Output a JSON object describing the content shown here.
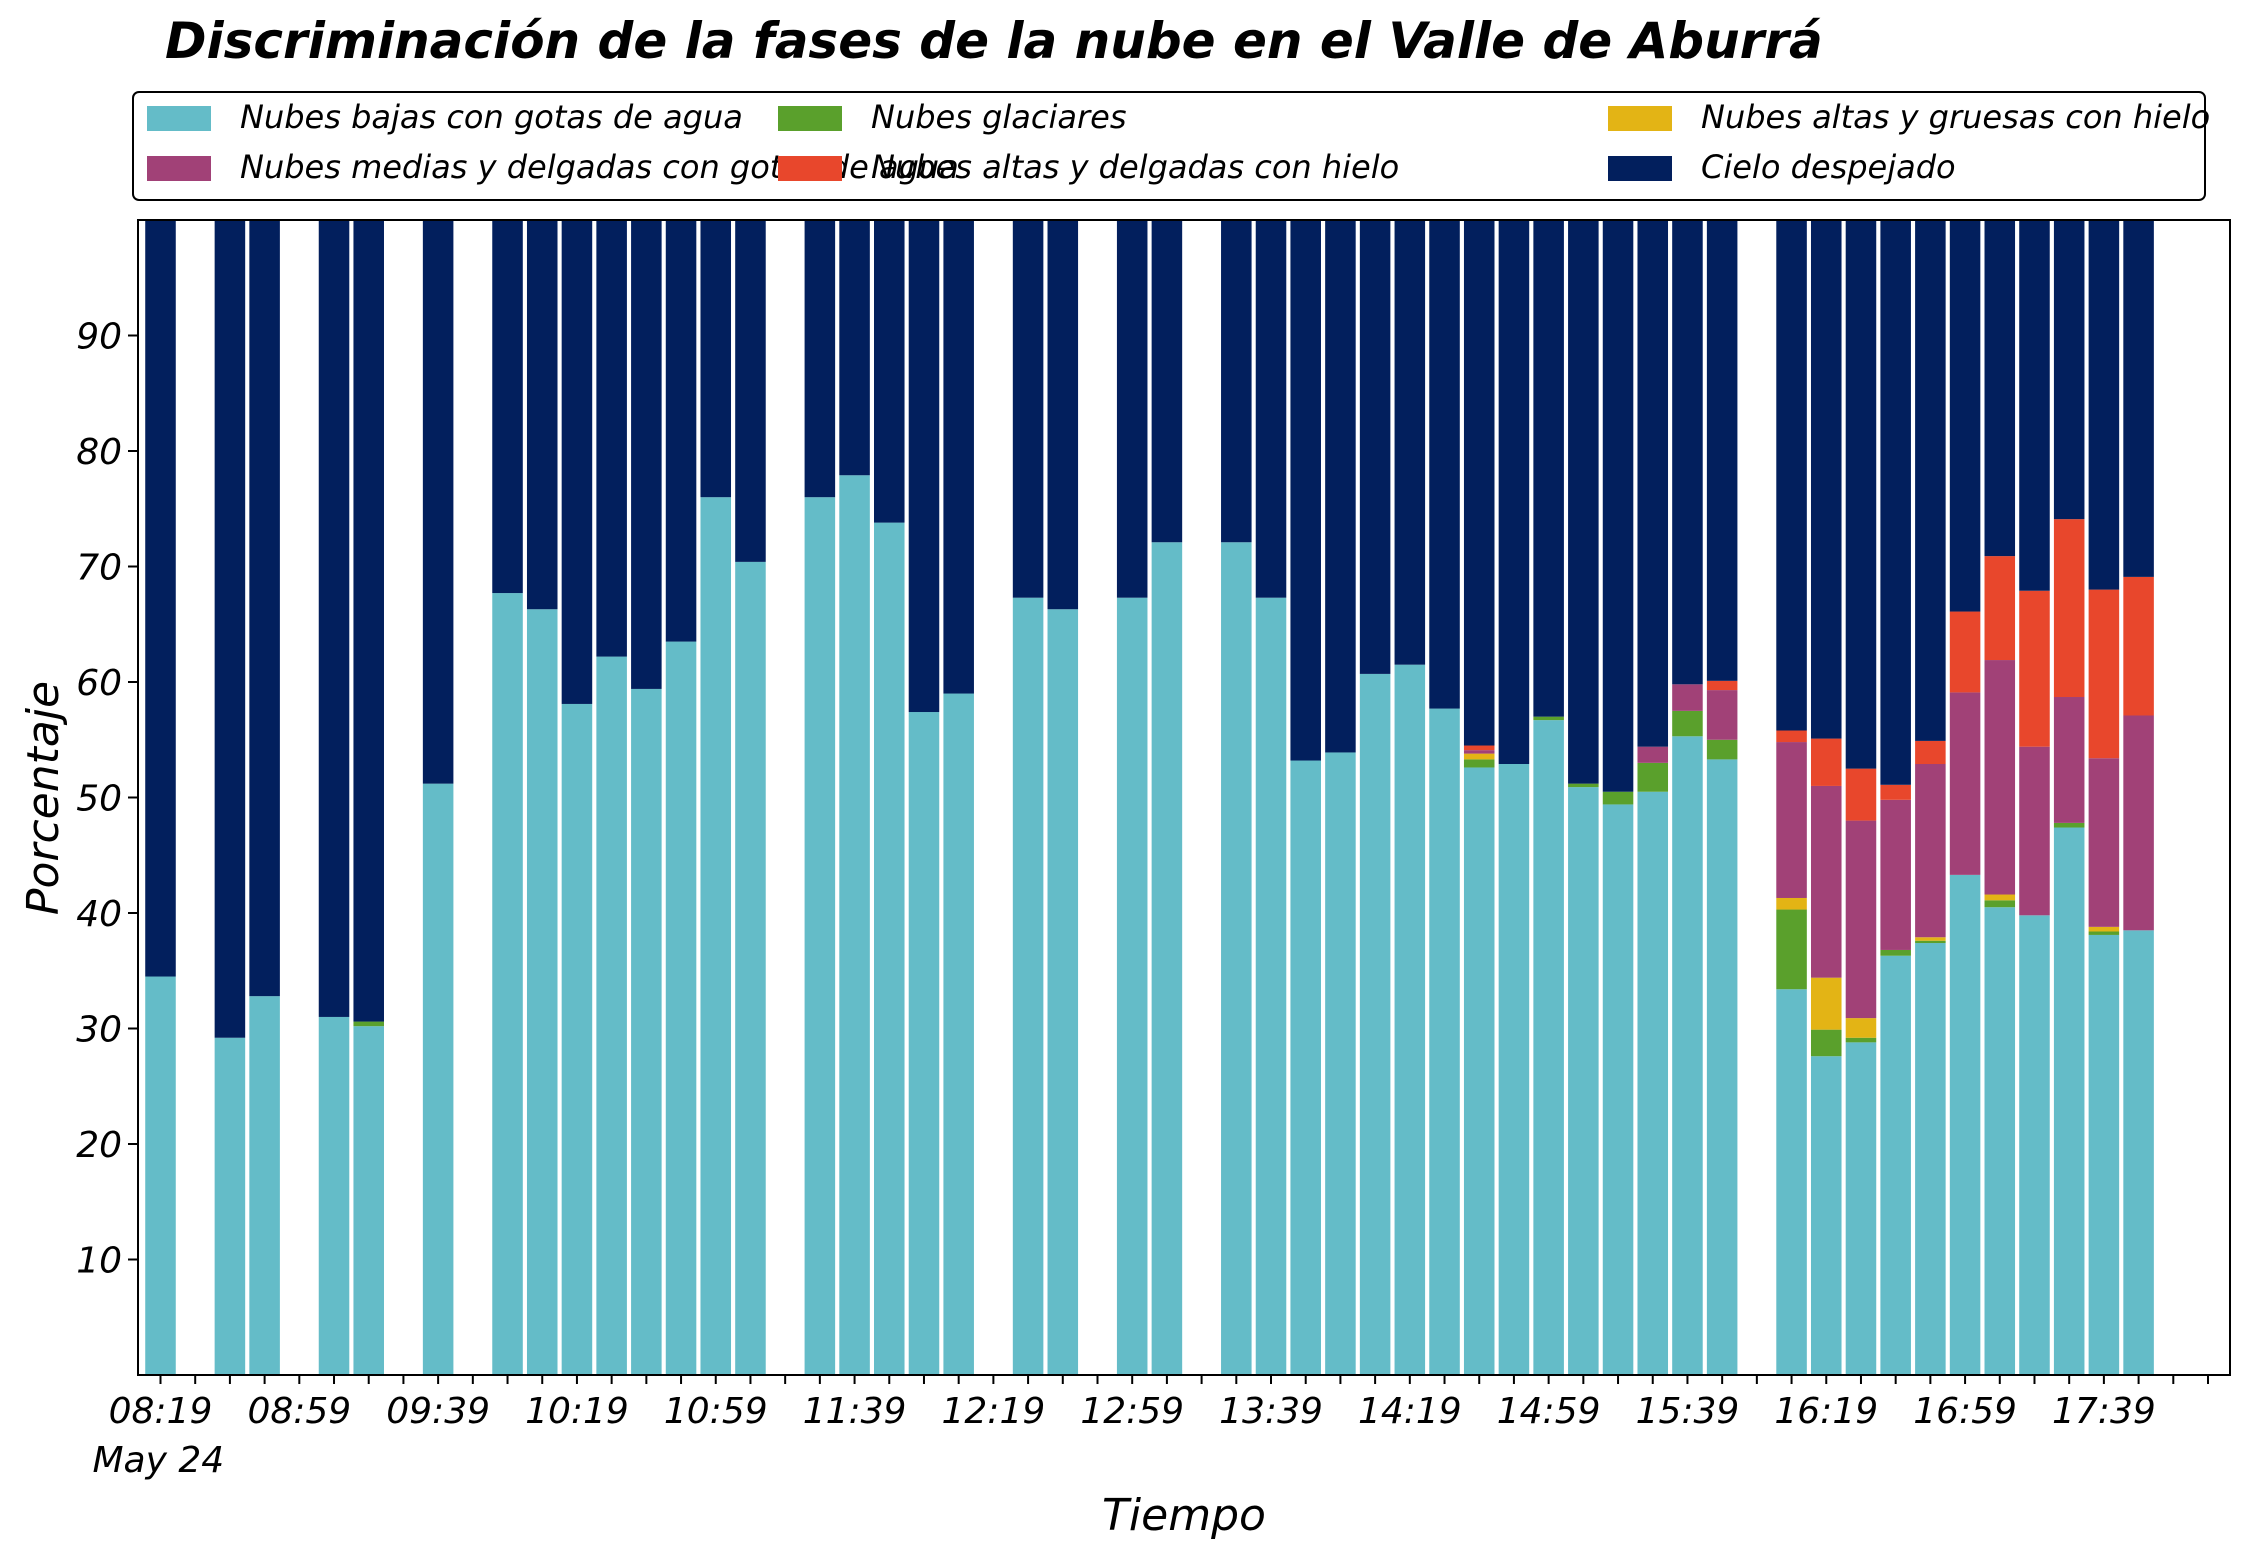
{
  "chart_data": {
    "type": "bar",
    "stacked": true,
    "title": "Discriminación de la fases de la nube en el Valle de Aburrá",
    "xlabel": "Tiempo",
    "ylabel": "Porcentaje",
    "ylim": [
      0,
      100
    ],
    "yticks": [
      10,
      20,
      30,
      40,
      50,
      60,
      70,
      80,
      90
    ],
    "x_start": "08:19",
    "x_end": "18:09",
    "x_step_minutes": 10,
    "x_date_label": "May 24",
    "xticks": [
      "08:19",
      "08:59",
      "09:39",
      "10:19",
      "10:59",
      "11:39",
      "12:19",
      "12:59",
      "13:39",
      "14:19",
      "14:59",
      "15:39",
      "16:19",
      "16:59",
      "17:39"
    ],
    "legend_position": "top",
    "legend_columns": 3,
    "grid": false,
    "x": [
      "08:19",
      "08:39",
      "08:49",
      "09:09",
      "09:19",
      "09:39",
      "09:59",
      "10:09",
      "10:19",
      "10:29",
      "10:39",
      "10:49",
      "10:59",
      "11:09",
      "11:29",
      "11:39",
      "11:49",
      "11:59",
      "12:09",
      "12:29",
      "12:39",
      "12:59",
      "13:09",
      "13:29",
      "13:39",
      "13:49",
      "13:59",
      "14:09",
      "14:19",
      "14:29",
      "14:39",
      "14:49",
      "14:59",
      "15:09",
      "15:19",
      "15:29",
      "15:39",
      "15:49",
      "16:09",
      "16:19",
      "16:29",
      "16:39",
      "16:49",
      "16:59",
      "17:09",
      "17:19",
      "17:29",
      "17:39",
      "17:49"
    ],
    "series": [
      {
        "name": "Nubes bajas con gotas de agua",
        "color": "#64bcc8",
        "values": [
          34.5,
          29.2,
          32.8,
          31.0,
          30.2,
          51.2,
          67.7,
          66.3,
          58.1,
          62.2,
          59.4,
          63.5,
          76.0,
          70.4,
          76.0,
          77.9,
          73.8,
          57.4,
          59.0,
          67.3,
          66.3,
          67.3,
          72.1,
          72.1,
          67.3,
          53.2,
          53.9,
          60.7,
          61.5,
          57.7,
          52.6,
          52.9,
          56.7,
          50.9,
          49.4,
          50.5,
          55.3,
          53.3,
          33.4,
          27.6,
          28.8,
          36.3,
          37.4,
          43.3,
          40.5,
          39.8,
          47.4,
          38.1,
          38.5
        ]
      },
      {
        "name": "Nubes glaciares",
        "color": "#5aa02c",
        "values": [
          0,
          0,
          0,
          0,
          0.4,
          0,
          0,
          0,
          0,
          0,
          0,
          0,
          0,
          0,
          0,
          0,
          0,
          0,
          0,
          0,
          0,
          0,
          0,
          0,
          0,
          0,
          0,
          0,
          0,
          0,
          0.7,
          0,
          0.3,
          0.3,
          1.1,
          2.5,
          2.2,
          1.7,
          6.9,
          2.3,
          0.4,
          0.5,
          0.2,
          0,
          0.6,
          0,
          0.4,
          0.3,
          0
        ]
      },
      {
        "name": "Nubes altas y gruesas con hielo",
        "color": "#e3b415",
        "values": [
          0,
          0,
          0,
          0,
          0,
          0,
          0,
          0,
          0,
          0,
          0,
          0,
          0,
          0,
          0,
          0,
          0,
          0,
          0,
          0,
          0,
          0,
          0,
          0,
          0,
          0,
          0,
          0,
          0,
          0,
          0.5,
          0,
          0,
          0,
          0,
          0,
          0,
          0,
          1.0,
          4.5,
          1.7,
          0,
          0.3,
          0,
          0.5,
          0,
          0,
          0.4,
          0
        ]
      },
      {
        "name": "Nubes medias y delgadas con gotas de agua",
        "color": "#a14177",
        "values": [
          0,
          0,
          0,
          0,
          0,
          0,
          0,
          0,
          0,
          0,
          0,
          0,
          0,
          0,
          0,
          0,
          0,
          0,
          0,
          0,
          0,
          0,
          0,
          0,
          0,
          0,
          0,
          0,
          0,
          0,
          0.3,
          0,
          0,
          0,
          0,
          1.4,
          2.3,
          4.3,
          13.5,
          16.6,
          17.1,
          13.0,
          15.0,
          15.8,
          20.3,
          14.6,
          10.9,
          14.6,
          18.6
        ]
      },
      {
        "name": "Nubes altas y delgadas con hielo",
        "color": "#e8472c",
        "values": [
          0,
          0,
          0,
          0,
          0,
          0,
          0,
          0,
          0,
          0,
          0,
          0,
          0,
          0,
          0,
          0,
          0,
          0,
          0,
          0,
          0,
          0,
          0,
          0,
          0,
          0,
          0,
          0,
          0,
          0,
          0.4,
          0,
          0,
          0,
          0,
          0,
          0,
          0.8,
          1.0,
          4.1,
          4.5,
          1.3,
          2.0,
          7.0,
          9.0,
          13.5,
          15.4,
          14.6,
          12.0
        ]
      },
      {
        "name": "Cielo despejado",
        "color": "#021f5d",
        "values": [
          65.5,
          70.8,
          67.2,
          69.0,
          69.4,
          48.8,
          32.3,
          33.7,
          41.9,
          37.8,
          40.6,
          36.5,
          24.0,
          29.6,
          24.0,
          22.1,
          26.2,
          42.6,
          41.0,
          32.7,
          33.7,
          32.7,
          27.9,
          27.9,
          32.7,
          46.8,
          46.1,
          39.3,
          38.5,
          42.3,
          45.5,
          47.1,
          43.0,
          48.8,
          49.5,
          45.6,
          40.2,
          39.9,
          44.2,
          44.9,
          47.5,
          48.9,
          45.1,
          33.9,
          29.1,
          32.1,
          25.9,
          32.0,
          30.9
        ]
      }
    ]
  }
}
